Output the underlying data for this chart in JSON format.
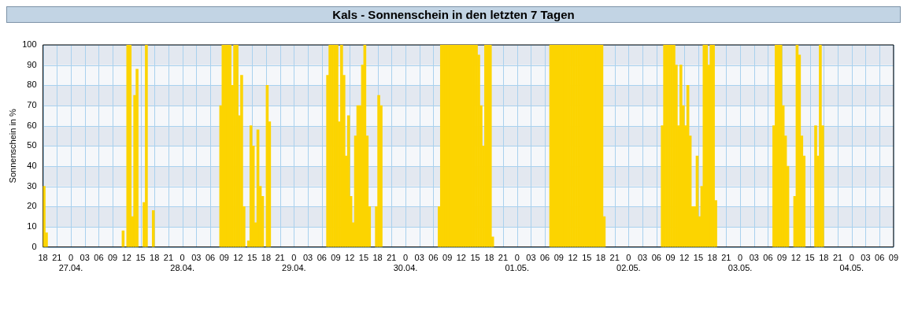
{
  "chart_data": {
    "type": "bar",
    "title": "Kals - Sonnenschein in den letzten 7 Tagen",
    "ylabel": "Sonnenschein in %",
    "color": "#fcd400",
    "x": [
      "--04-26T18:15",
      "--04-26T18:45",
      "--04-27T11:15",
      "--04-27T12:15",
      "--04-27T12:45",
      "--04-27T13:15",
      "--04-27T13:45",
      "--04-27T14:15",
      "--04-27T15:45",
      "--04-27T16:15",
      "--04-27T17:45",
      "--04-28T08:15",
      "--04-28T08:45",
      "--04-28T09:15",
      "--04-28T09:45",
      "--04-28T10:15",
      "--04-28T10:45",
      "--04-28T11:15",
      "--04-28T11:45",
      "--04-28T12:15",
      "--04-28T12:45",
      "--04-28T13:15",
      "--04-28T14:15",
      "--04-28T14:45",
      "--04-28T15:15",
      "--04-28T15:45",
      "--04-28T16:15",
      "--04-28T16:45",
      "--04-28T17:15",
      "--04-28T18:15",
      "--04-28T18:45",
      "--04-29T07:15",
      "--04-29T07:45",
      "--04-29T08:15",
      "--04-29T08:45",
      "--04-29T09:15",
      "--04-29T09:45",
      "--04-29T10:15",
      "--04-29T10:45",
      "--04-29T11:15",
      "--04-29T11:45",
      "--04-29T12:15",
      "--04-29T12:45",
      "--04-29T13:15",
      "--04-29T13:45",
      "--04-29T14:15",
      "--04-29T14:45",
      "--04-29T15:15",
      "--04-29T15:45",
      "--04-29T16:15",
      "--04-29T17:45",
      "--04-29T18:15",
      "--04-29T18:45",
      "--04-30T07:15",
      "--04-30T07:45",
      "--04-30T08:15",
      "--04-30T08:45",
      "--04-30T09:15",
      "--04-30T09:45",
      "--04-30T10:15",
      "--04-30T10:45",
      "--04-30T11:15",
      "--04-30T11:45",
      "--04-30T12:15",
      "--04-30T12:45",
      "--04-30T13:15",
      "--04-30T13:45",
      "--04-30T14:15",
      "--04-30T14:45",
      "--04-30T15:15",
      "--04-30T15:45",
      "--04-30T16:15",
      "--04-30T16:45",
      "--04-30T17:15",
      "--04-30T17:45",
      "--04-30T18:15",
      "--04-30T18:45",
      "--05-01T07:15",
      "--05-01T07:45",
      "--05-01T08:15",
      "--05-01T08:45",
      "--05-01T09:15",
      "--05-01T09:45",
      "--05-01T10:15",
      "--05-01T10:45",
      "--05-01T11:15",
      "--05-01T11:45",
      "--05-01T12:15",
      "--05-01T12:45",
      "--05-01T13:15",
      "--05-01T13:45",
      "--05-01T14:15",
      "--05-01T14:45",
      "--05-01T15:15",
      "--05-01T15:45",
      "--05-01T16:15",
      "--05-01T16:45",
      "--05-01T17:15",
      "--05-01T17:45",
      "--05-01T18:15",
      "--05-01T18:45",
      "--05-02T07:15",
      "--05-02T07:45",
      "--05-02T08:15",
      "--05-02T08:45",
      "--05-02T09:15",
      "--05-02T09:45",
      "--05-02T10:15",
      "--05-02T10:45",
      "--05-02T11:15",
      "--05-02T11:45",
      "--05-02T12:15",
      "--05-02T12:45",
      "--05-02T13:15",
      "--05-02T13:45",
      "--05-02T14:15",
      "--05-02T14:45",
      "--05-02T15:15",
      "--05-02T15:45",
      "--05-02T16:15",
      "--05-02T16:45",
      "--05-02T17:15",
      "--05-02T17:45",
      "--05-02T18:15",
      "--05-02T18:45",
      "--05-03T07:15",
      "--05-03T07:45",
      "--05-03T08:15",
      "--05-03T08:45",
      "--05-03T09:15",
      "--05-03T09:45",
      "--05-03T10:15",
      "--05-03T11:45",
      "--05-03T12:15",
      "--05-03T12:45",
      "--05-03T13:15",
      "--05-03T13:45",
      "--05-03T16:15",
      "--05-03T16:45",
      "--05-03T17:15",
      "--05-03T17:45"
    ],
    "values": [
      30,
      7,
      8,
      100,
      100,
      15,
      75,
      88,
      22,
      100,
      18,
      70,
      100,
      100,
      100,
      100,
      80,
      100,
      100,
      65,
      85,
      20,
      3,
      60,
      50,
      12,
      58,
      30,
      25,
      80,
      62,
      85,
      100,
      100,
      100,
      100,
      62,
      100,
      85,
      45,
      65,
      25,
      12,
      55,
      70,
      70,
      90,
      100,
      55,
      20,
      20,
      75,
      70,
      20,
      100,
      100,
      100,
      100,
      100,
      100,
      100,
      100,
      100,
      100,
      100,
      100,
      100,
      100,
      100,
      100,
      95,
      70,
      50,
      100,
      100,
      100,
      5,
      100,
      100,
      100,
      100,
      100,
      100,
      100,
      100,
      100,
      100,
      100,
      100,
      100,
      100,
      100,
      100,
      100,
      100,
      100,
      100,
      100,
      100,
      100,
      15,
      60,
      100,
      100,
      100,
      100,
      100,
      90,
      60,
      90,
      70,
      60,
      80,
      55,
      20,
      20,
      45,
      15,
      30,
      100,
      100,
      90,
      100,
      100,
      23,
      60,
      100,
      100,
      100,
      70,
      55,
      40,
      25,
      100,
      95,
      55,
      45,
      60,
      45,
      100,
      60
    ],
    "xlim": [
      "--04-26T18:00",
      "--05-04T09:00"
    ],
    "xticks": [
      {
        "value": "--04-26T18:00",
        "label": "18"
      },
      {
        "value": "--04-26T21:00",
        "label": "21"
      },
      {
        "value": "--04-27T00:00",
        "label": "0\n27.04."
      },
      {
        "value": "--04-27T03:00",
        "label": "03"
      },
      {
        "value": "--04-27T06:00",
        "label": "06"
      },
      {
        "value": "--04-27T09:00",
        "label": "09"
      },
      {
        "value": "--04-27T12:00",
        "label": "12"
      },
      {
        "value": "--04-27T15:00",
        "label": "15"
      },
      {
        "value": "--04-27T18:00",
        "label": "18"
      },
      {
        "value": "--04-27T21:00",
        "label": "21"
      },
      {
        "value": "--04-28T00:00",
        "label": "0\n28.04."
      },
      {
        "value": "--04-28T03:00",
        "label": "03"
      },
      {
        "value": "--04-28T06:00",
        "label": "06"
      },
      {
        "value": "--04-28T09:00",
        "label": "09"
      },
      {
        "value": "--04-28T12:00",
        "label": "12"
      },
      {
        "value": "--04-28T15:00",
        "label": "15"
      },
      {
        "value": "--04-28T18:00",
        "label": "18"
      },
      {
        "value": "--04-28T21:00",
        "label": "21"
      },
      {
        "value": "--04-29T00:00",
        "label": "0\n29.04."
      },
      {
        "value": "--04-29T03:00",
        "label": "03"
      },
      {
        "value": "--04-29T06:00",
        "label": "06"
      },
      {
        "value": "--04-29T09:00",
        "label": "09"
      },
      {
        "value": "--04-29T12:00",
        "label": "12"
      },
      {
        "value": "--04-29T15:00",
        "label": "15"
      },
      {
        "value": "--04-29T18:00",
        "label": "18"
      },
      {
        "value": "--04-29T21:00",
        "label": "21"
      },
      {
        "value": "--04-30T00:00",
        "label": "0\n30.04."
      },
      {
        "value": "--04-30T03:00",
        "label": "03"
      },
      {
        "value": "--04-30T06:00",
        "label": "06"
      },
      {
        "value": "--04-30T09:00",
        "label": "09"
      },
      {
        "value": "--04-30T12:00",
        "label": "12"
      },
      {
        "value": "--04-30T15:00",
        "label": "15"
      },
      {
        "value": "--04-30T18:00",
        "label": "18"
      },
      {
        "value": "--04-30T21:00",
        "label": "21"
      },
      {
        "value": "--05-01T00:00",
        "label": "0\n01.05."
      },
      {
        "value": "--05-01T03:00",
        "label": "03"
      },
      {
        "value": "--05-01T06:00",
        "label": "06"
      },
      {
        "value": "--05-01T09:00",
        "label": "09"
      },
      {
        "value": "--05-01T12:00",
        "label": "12"
      },
      {
        "value": "--05-01T15:00",
        "label": "15"
      },
      {
        "value": "--05-01T18:00",
        "label": "18"
      },
      {
        "value": "--05-01T21:00",
        "label": "21"
      },
      {
        "value": "--05-02T00:00",
        "label": "0\n02.05."
      },
      {
        "value": "--05-02T03:00",
        "label": "03"
      },
      {
        "value": "--05-02T06:00",
        "label": "06"
      },
      {
        "value": "--05-02T09:00",
        "label": "09"
      },
      {
        "value": "--05-02T12:00",
        "label": "12"
      },
      {
        "value": "--05-02T15:00",
        "label": "15"
      },
      {
        "value": "--05-02T18:00",
        "label": "18"
      },
      {
        "value": "--05-02T21:00",
        "label": "21"
      },
      {
        "value": "--05-03T00:00",
        "label": "0\n03.05."
      },
      {
        "value": "--05-03T03:00",
        "label": "03"
      },
      {
        "value": "--05-03T06:00",
        "label": "06"
      },
      {
        "value": "--05-03T09:00",
        "label": "09"
      },
      {
        "value": "--05-03T12:00",
        "label": "12"
      },
      {
        "value": "--05-03T15:00",
        "label": "15"
      },
      {
        "value": "--05-03T18:00",
        "label": "18"
      },
      {
        "value": "--05-03T21:00",
        "label": "21"
      },
      {
        "value": "--05-04T00:00",
        "label": "0\n04.05."
      },
      {
        "value": "--05-04T03:00",
        "label": "03"
      },
      {
        "value": "--05-04T06:00",
        "label": "06"
      },
      {
        "value": "--05-04T09:00",
        "label": "09"
      }
    ],
    "ylim": [
      0,
      100
    ],
    "yticks": [
      0,
      10,
      20,
      30,
      40,
      50,
      60,
      70,
      80,
      90,
      100
    ],
    "grid": true
  }
}
